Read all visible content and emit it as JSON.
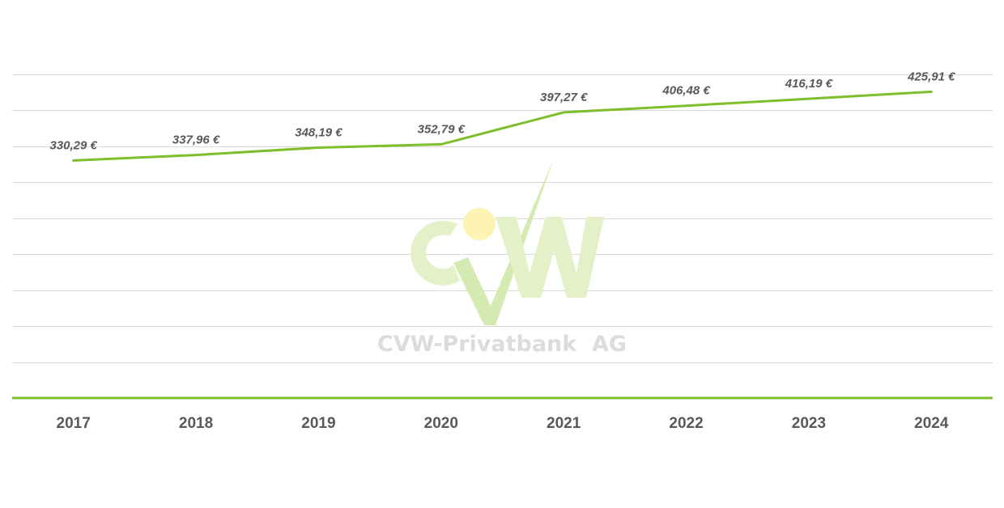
{
  "chart_data": {
    "type": "line",
    "categories": [
      "2017",
      "2018",
      "2019",
      "2020",
      "2021",
      "2022",
      "2023",
      "2024"
    ],
    "values": [
      330.29,
      337.96,
      348.19,
      352.79,
      397.27,
      406.48,
      416.19,
      425.91
    ],
    "value_labels": [
      "330,29 €",
      "337,96 €",
      "348,19 €",
      "352,79 €",
      "397,27 €",
      "406,48 €",
      "416,19 €",
      "425,91 €"
    ],
    "title": "",
    "xlabel": "",
    "ylabel": "",
    "ylim": [
      0,
      450
    ],
    "grid": true,
    "legend": "none",
    "colors": {
      "line": "#7cbf2b",
      "axis": "#7cbf2b",
      "grid": "#d9d9d9",
      "text": "#595959"
    }
  },
  "watermark": {
    "logo_text": "CVW",
    "company": "CVW-Privatbank  AG",
    "colors": {
      "green": "#e3f0c8",
      "check": "#d5eab3",
      "sun": "#fdf3b3",
      "text": "#dcdcdc"
    }
  }
}
